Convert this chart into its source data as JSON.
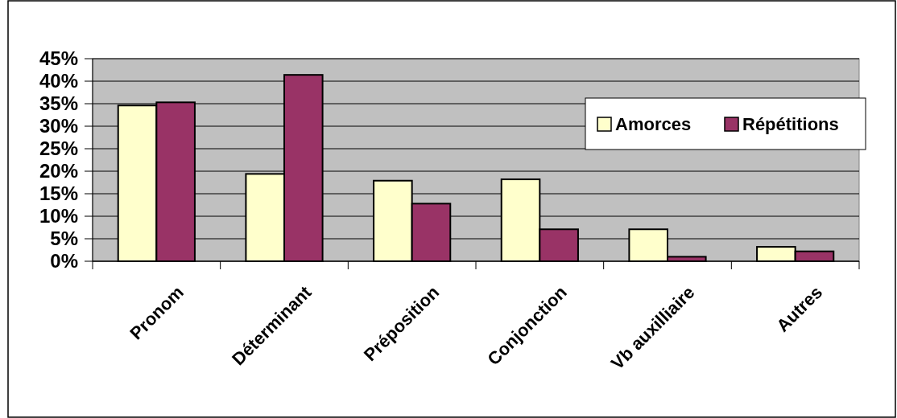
{
  "chart_data": {
    "type": "bar",
    "categories": [
      "Pronom",
      "Déterminant",
      "Préposition",
      "Conjonction",
      "Vb auxilliaire",
      "Autres"
    ],
    "series": [
      {
        "name": "Amorces",
        "color": "#ffffcc",
        "values": [
          34.6,
          19.4,
          17.9,
          18.2,
          7.1,
          3.2
        ]
      },
      {
        "name": "Répétitions",
        "color": "#993366",
        "values": [
          35.3,
          41.4,
          12.8,
          7.1,
          1.0,
          2.2
        ]
      }
    ],
    "ylim": [
      0,
      45
    ],
    "yticks": [
      {
        "value": 0,
        "label": "0%"
      },
      {
        "value": 5,
        "label": "5%"
      },
      {
        "value": 10,
        "label": "10%"
      },
      {
        "value": 15,
        "label": "15%"
      },
      {
        "value": 20,
        "label": "20%"
      },
      {
        "value": 25,
        "label": "25%"
      },
      {
        "value": 30,
        "label": "30%"
      },
      {
        "value": 35,
        "label": "35%"
      },
      {
        "value": 40,
        "label": "40%"
      },
      {
        "value": 45,
        "label": "45%"
      }
    ],
    "grid": "y",
    "legend": "top right"
  }
}
